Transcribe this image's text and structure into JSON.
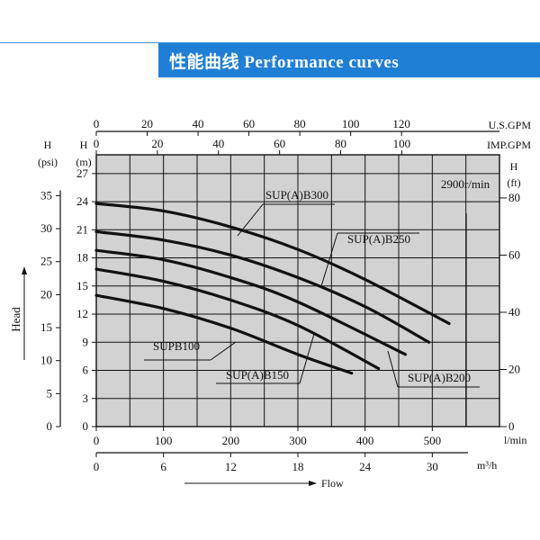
{
  "header": {
    "title": "性能曲线 Performance curves",
    "accent_color": "#1f7fd4"
  },
  "chart_data": {
    "type": "line",
    "title": "",
    "speed_label": "2900r/min",
    "xlabel": "Flow",
    "ylabel": "Head",
    "grid": true,
    "x_axes": [
      {
        "unit": "l/min",
        "ticks": [
          0,
          100,
          200,
          300,
          400,
          500
        ],
        "range": [
          0,
          600
        ]
      },
      {
        "unit": "m³/h",
        "ticks": [
          0,
          6,
          12,
          18,
          24,
          30
        ],
        "range": [
          0,
          36
        ]
      },
      {
        "unit": "U.S.GPM",
        "ticks": [
          0,
          20,
          40,
          60,
          80,
          100,
          120
        ],
        "range": [
          0,
          158.5
        ]
      },
      {
        "unit": "IMP.GPM",
        "ticks": [
          0,
          20,
          40,
          60,
          80,
          100
        ],
        "range": [
          0,
          132
        ]
      }
    ],
    "y_axes": [
      {
        "label": "H",
        "unit": "(m)",
        "ticks": [
          0,
          3,
          6,
          9,
          12,
          15,
          18,
          21,
          24,
          27
        ],
        "range": [
          0,
          29
        ]
      },
      {
        "label": "H",
        "unit": "(psi)",
        "ticks": [
          0,
          5,
          10,
          15,
          20,
          25,
          30,
          35
        ],
        "range": [
          0,
          41.2
        ]
      },
      {
        "label": "H",
        "unit": "(ft)",
        "ticks": [
          0,
          20,
          40,
          60,
          80
        ],
        "range": [
          0,
          95.1
        ]
      }
    ],
    "series": [
      {
        "name": "SUPB100",
        "x": [
          0,
          100,
          200,
          300,
          380
        ],
        "y": [
          14.0,
          12.6,
          10.5,
          7.7,
          5.7
        ]
      },
      {
        "name": "SUP(A)B150",
        "x": [
          0,
          100,
          200,
          300,
          420
        ],
        "y": [
          16.8,
          15.5,
          13.5,
          10.8,
          6.2
        ]
      },
      {
        "name": "SUP(A)B200",
        "x": [
          0,
          100,
          200,
          300,
          460
        ],
        "y": [
          18.8,
          17.8,
          15.9,
          13.3,
          7.7
        ]
      },
      {
        "name": "SUP(A)B250",
        "x": [
          0,
          100,
          200,
          300,
          400,
          495
        ],
        "y": [
          20.8,
          19.9,
          18.3,
          15.9,
          12.8,
          9.0
        ]
      },
      {
        "name": "SUP(A)B300",
        "x": [
          0,
          100,
          200,
          300,
          400,
          525
        ],
        "y": [
          23.8,
          23.0,
          21.3,
          18.9,
          15.7,
          11.0
        ]
      }
    ]
  }
}
